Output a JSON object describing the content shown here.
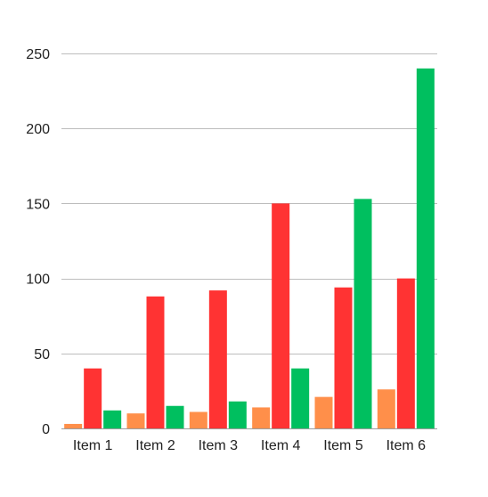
{
  "chart_data": {
    "type": "bar",
    "title": "",
    "xlabel": "",
    "ylabel": "",
    "categories": [
      "Item 1",
      "Item 2",
      "Item 3",
      "Item 4",
      "Item 5",
      "Item 6"
    ],
    "series": [
      {
        "color": "#ff8f4a",
        "values": [
          3,
          10,
          11,
          14,
          21,
          26
        ]
      },
      {
        "color": "#ff3333",
        "values": [
          40,
          88,
          92,
          150,
          94,
          100
        ]
      },
      {
        "color": "#00bf5f",
        "values": [
          12,
          15,
          18,
          40,
          153,
          240
        ]
      }
    ],
    "ylim": [
      0,
      250
    ],
    "yticks": [
      0,
      50,
      100,
      150,
      200,
      250
    ],
    "grid": true,
    "legend": "none"
  }
}
